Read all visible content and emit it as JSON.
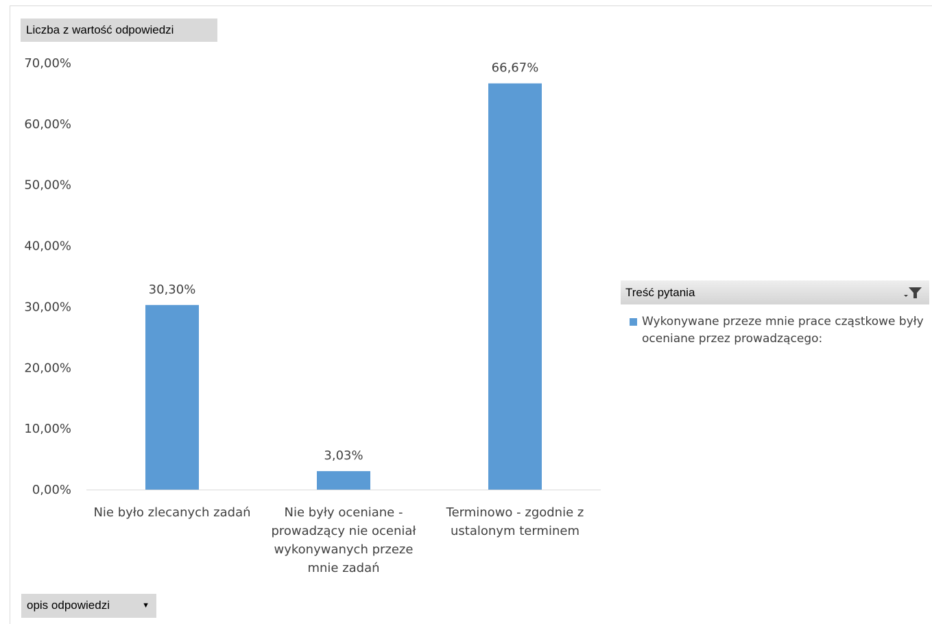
{
  "pivot": {
    "value_field": "Liczba z wartość odpowiedzi",
    "axis_field": "opis odpowiedzi",
    "legend_field": "Treść pytania"
  },
  "colors": {
    "bar": "#5b9bd5",
    "axis": "#d9d9d9",
    "text": "#404040"
  },
  "icons": {
    "dropdown": "dropdown-arrow-icon",
    "filter": "filter-funnel-icon"
  },
  "chart_data": {
    "type": "bar",
    "categories": [
      [
        "Nie było zlecanych zadań"
      ],
      [
        "Nie były oceniane -",
        "prowadzący nie oceniał",
        "wykonywanych przeze",
        "mnie zadań"
      ],
      [
        "Terminowo - zgodnie z",
        "ustalonym terminem"
      ]
    ],
    "series": [
      {
        "name": "Wykonywane przeze mnie prace cząstkowe były oceniane przez prowadzącego:",
        "values": [
          30.3,
          3.03,
          66.67
        ]
      }
    ],
    "value_labels": [
      "30,30%",
      "3,03%",
      "66,67%"
    ],
    "yticks": [
      "0,00%",
      "10,00%",
      "20,00%",
      "30,00%",
      "40,00%",
      "50,00%",
      "60,00%",
      "70,00%"
    ],
    "ylim": [
      0,
      70
    ],
    "grid": false,
    "legend_position": "right"
  }
}
